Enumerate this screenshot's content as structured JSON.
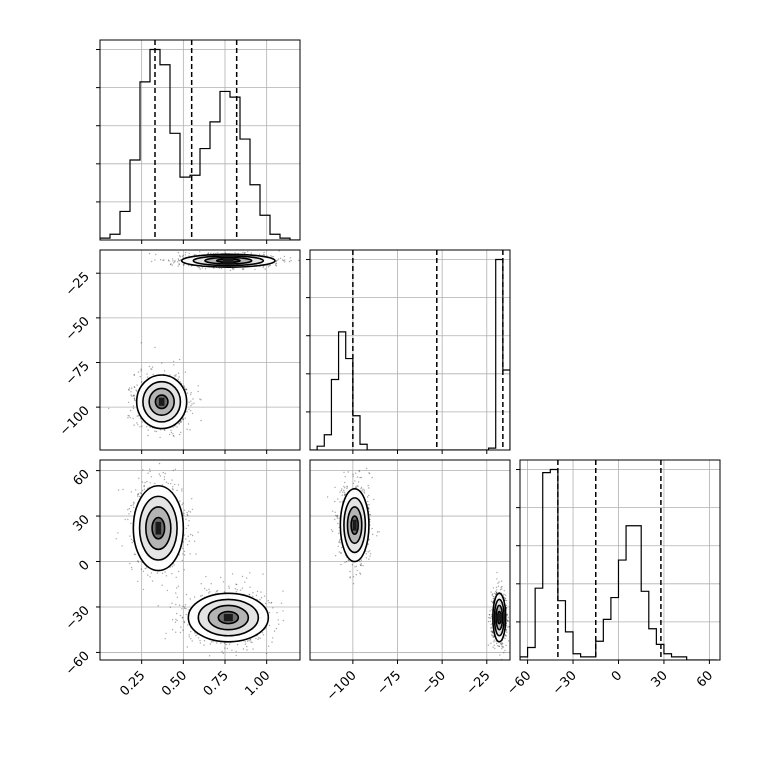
{
  "chart_data": {
    "type": "corner",
    "grid": true,
    "parameters": [
      {
        "index": 0,
        "range": [
          0.0,
          1.2
        ],
        "ticks": [
          0.25,
          0.5,
          0.75,
          1.0
        ],
        "tick_labels": [
          "0.25",
          "0.50",
          "0.75",
          "1.00"
        ]
      },
      {
        "index": 1,
        "range": [
          -124,
          -12
        ],
        "ticks": [
          -100,
          -75,
          -50,
          -25
        ],
        "tick_labels": [
          "−100",
          "−75",
          "−50",
          "−25"
        ]
      },
      {
        "index": 2,
        "range": [
          -65,
          67
        ],
        "ticks": [
          -60,
          -30,
          0,
          30,
          60
        ],
        "tick_labels": [
          "−60",
          "−30",
          "0",
          "30",
          "60"
        ]
      }
    ],
    "histograms": [
      {
        "param": 0,
        "bin_edges": [
          0.0,
          0.06,
          0.12,
          0.18,
          0.24,
          0.3,
          0.36,
          0.42,
          0.48,
          0.54,
          0.6,
          0.66,
          0.72,
          0.78,
          0.84,
          0.9,
          0.96,
          1.02,
          1.08,
          1.14,
          1.2
        ],
        "counts": [
          0.01,
          0.03,
          0.15,
          0.42,
          0.83,
          1.0,
          0.92,
          0.56,
          0.33,
          0.34,
          0.48,
          0.62,
          0.78,
          0.75,
          0.53,
          0.29,
          0.13,
          0.03,
          0.01,
          0
        ],
        "quantiles": [
          0.33,
          0.55,
          0.82
        ]
      },
      {
        "param": 1,
        "bin_edges": [
          -124,
          -120,
          -116,
          -112,
          -108,
          -104,
          -100,
          -96,
          -92,
          -88,
          -84,
          -80,
          -76,
          -72,
          -68,
          -64,
          -60,
          -56,
          -52,
          -48,
          -44,
          -40,
          -36,
          -32,
          -28,
          -24,
          -20,
          -16,
          -12
        ],
        "counts": [
          0,
          0.02,
          0.08,
          0.37,
          0.62,
          0.48,
          0.18,
          0.03,
          0,
          0,
          0,
          0,
          0,
          0,
          0,
          0,
          0,
          0,
          0,
          0,
          0,
          0,
          0,
          0,
          0,
          0.01,
          1.0,
          0.42
        ],
        "quantiles": [
          -100,
          -53,
          -16
        ]
      },
      {
        "param": 2,
        "bin_edges": [
          -65,
          -60,
          -55,
          -50,
          -45,
          -40,
          -35,
          -30,
          -25,
          -20,
          -15,
          -10,
          -5,
          0,
          5,
          10,
          15,
          20,
          25,
          30,
          35,
          40,
          45,
          50,
          55,
          60,
          65
        ],
        "counts": [
          0.01,
          0.04,
          0.23,
          0.6,
          0.61,
          0.19,
          0.09,
          0.02,
          0.01,
          0.01,
          0.06,
          0.13,
          0.2,
          0.32,
          0.43,
          0.43,
          0.22,
          0.1,
          0.05,
          0.02,
          0.01,
          0.01,
          0,
          0,
          0,
          0
        ],
        "quantiles": [
          -40,
          -15,
          28
        ]
      }
    ],
    "density_2d": [
      {
        "x_param": 0,
        "y_param": 1,
        "modes": [
          {
            "center": [
              0.37,
              -97
            ],
            "spread": [
              0.075,
              7.5
            ],
            "weight": 0.5
          },
          {
            "center": [
              0.77,
              -18
            ],
            "spread": [
              0.14,
              1.8
            ],
            "weight": 0.5
          }
        ]
      },
      {
        "x_param": 0,
        "y_param": 2,
        "modes": [
          {
            "center": [
              0.35,
              22
            ],
            "spread": [
              0.075,
              14
            ],
            "weight": 0.5
          },
          {
            "center": [
              0.77,
              -37
            ],
            "spread": [
              0.12,
              8
            ],
            "weight": 0.5
          }
        ]
      },
      {
        "x_param": 1,
        "y_param": 2,
        "modes": [
          {
            "center": [
              -99,
              24
            ],
            "spread": [
              4,
              12
            ],
            "weight": 0.5
          },
          {
            "center": [
              -18,
              -37
            ],
            "spread": [
              1.8,
              8
            ],
            "weight": 0.5
          }
        ]
      }
    ]
  }
}
